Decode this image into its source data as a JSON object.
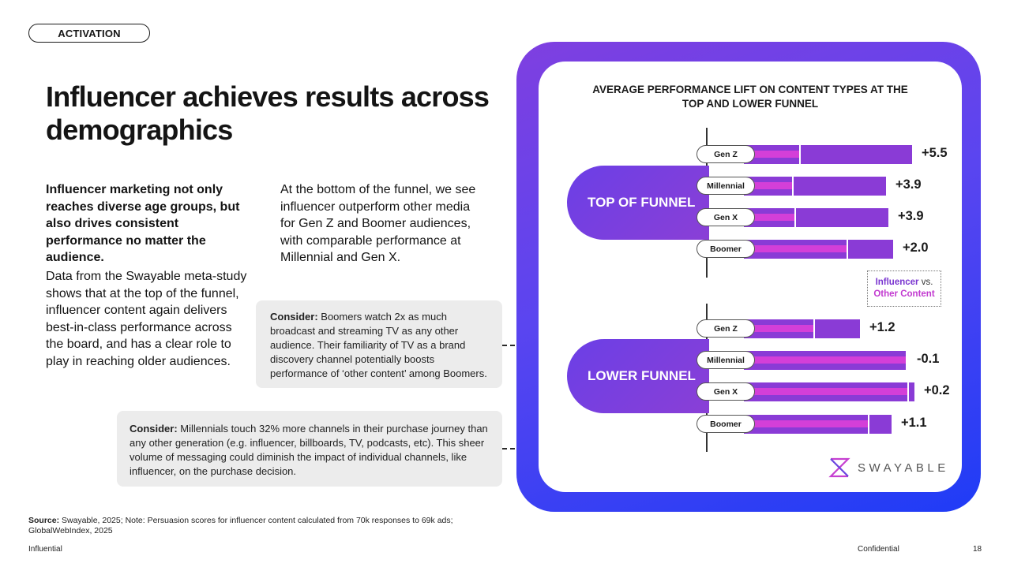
{
  "header": {
    "section_pill": "ACTIVATION"
  },
  "title": "Influencer achieves results across demographics",
  "lede": "Influencer marketing not only reaches diverse age groups, but also drives consistent performance no matter the audience.",
  "body_left": "Data from the Swayable meta-study shows that at the top of the funnel, influencer content again delivers best-in-class performance across the board, and has a clear role to play in reaching older audiences.",
  "body_right": "At the bottom of the funnel, we see influencer outperform other media for Gen Z and Boomer audiences, with comparable performance at Millennial and Gen X.",
  "callout1": {
    "label": "Consider:",
    "text": " Boomers watch 2x as much broadcast and streaming TV as any other audience. Their familiarity of TV as a brand discovery channel potentially boosts performance of ‘other content’ among Boomers."
  },
  "callout2": {
    "label": "Consider:",
    "text": " Millennials touch 32% more channels in their purchase journey than any other generation (e.g. influencer, billboards, TV, podcasts, etc). This sheer volume of messaging could diminish the impact of individual channels, like influencer, on the purchase decision."
  },
  "source": {
    "label": "Source:",
    "text": " Swayable, 2025; Note: Persuasion scores for influencer content calculated from 70k responses to 69k ads; GlobalWebIndex, 2025"
  },
  "footer": {
    "left": "Influential",
    "center": "Confidential",
    "page": "18"
  },
  "brand": {
    "name": "SWAYABLE"
  },
  "colors": {
    "influencer": "#8a3bd6",
    "other_content": "#d43fd8",
    "accent": "#5a45f0"
  },
  "chart_data": {
    "type": "bar",
    "orientation": "horizontal",
    "title": "AVERAGE PERFORMANCE LIFT ON CONTENT TYPES AT THE TOP AND LOWER FUNNEL",
    "legend": {
      "influencer": "Influencer",
      "vs": " vs.",
      "other": "Other Content",
      "placement": "right"
    },
    "groups": [
      {
        "name": "TOP OF FUNNEL",
        "categories": [
          "Gen Z",
          "Millennial",
          "Gen X",
          "Boomer"
        ],
        "influencer": [
          5.5,
          3.9,
          3.9,
          2.0
        ],
        "labels": [
          "+5.5",
          "+3.9",
          "+3.9",
          "+2.0"
        ]
      },
      {
        "name": "LOWER FUNNEL",
        "categories": [
          "Gen Z",
          "Millennial",
          "Gen X",
          "Boomer"
        ],
        "influencer": [
          1.2,
          -0.1,
          0.2,
          1.1
        ],
        "labels": [
          "+1.2",
          "-0.1",
          "+0.2",
          "+1.1"
        ]
      }
    ],
    "bar_fill_fraction": [
      0.97,
      0.82,
      0.83,
      0.86,
      0.67,
      0.94,
      0.98,
      0.85
    ],
    "other_fill_fraction": [
      0.33,
      0.34,
      0.35,
      0.69,
      0.6,
      0.99,
      0.96,
      0.84
    ]
  }
}
